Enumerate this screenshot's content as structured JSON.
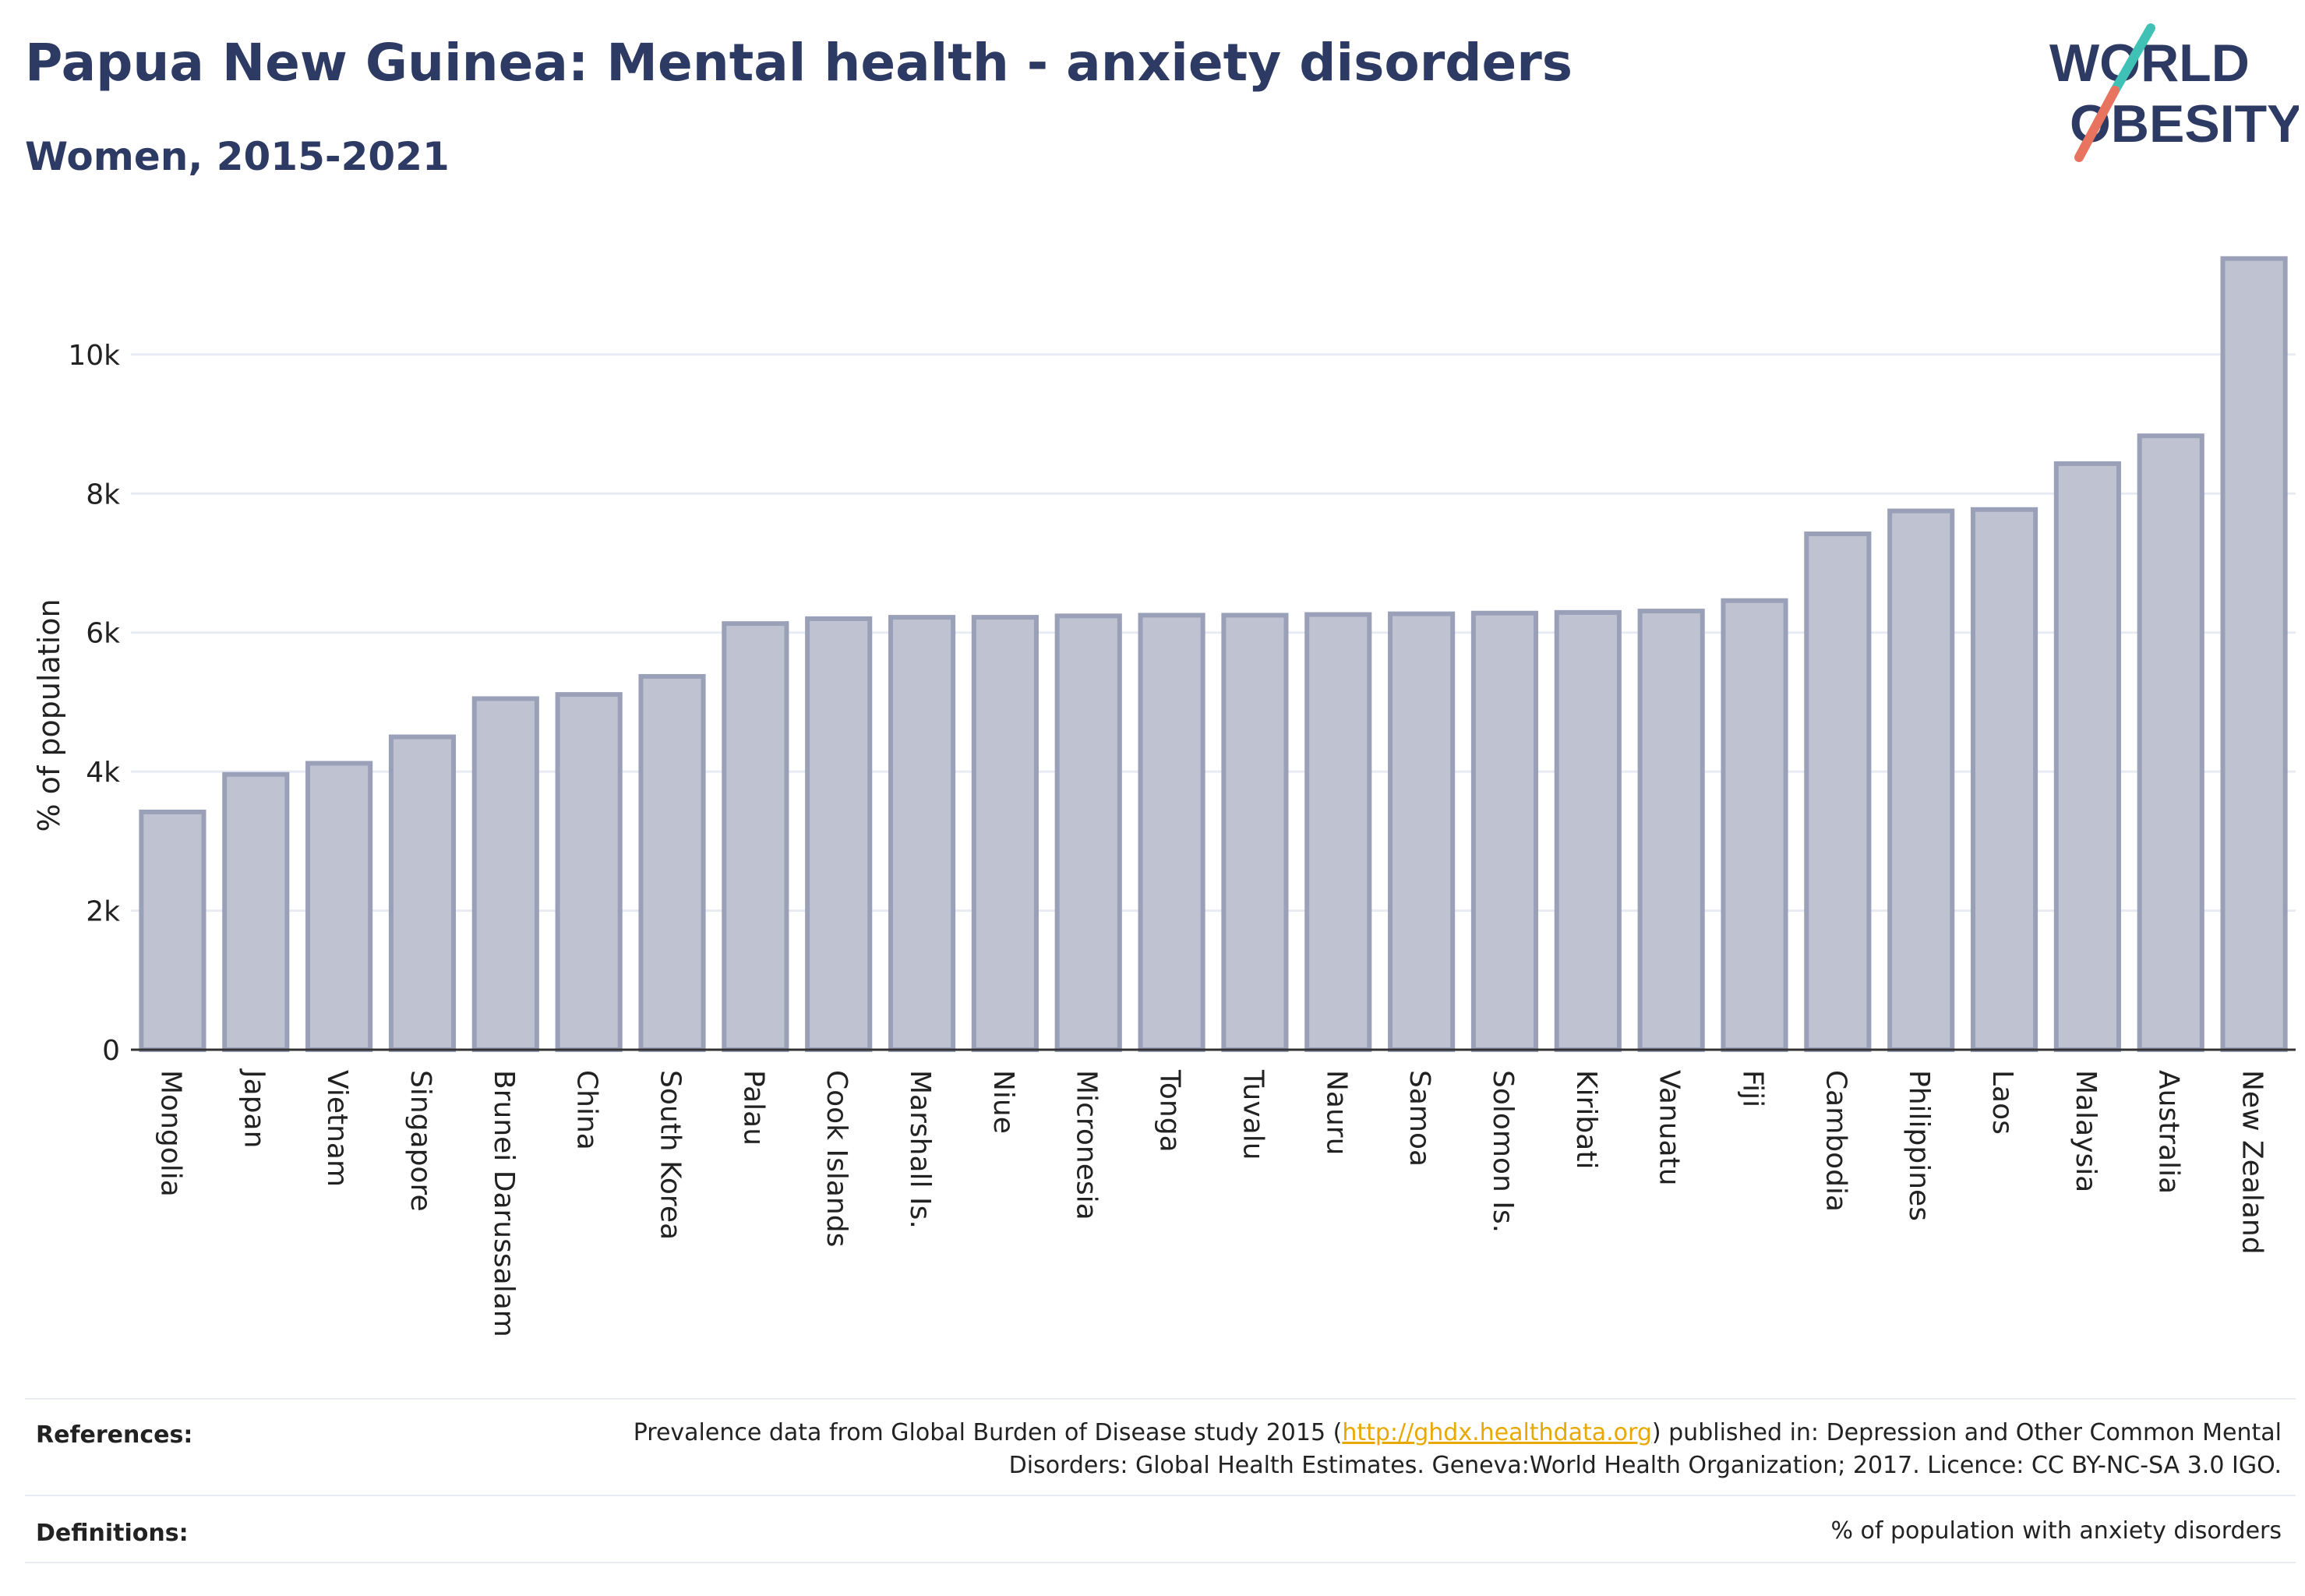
{
  "header": {
    "title": "Papua New Guinea: Mental health - anxiety disorders",
    "subtitle": "Women, 2015-2021"
  },
  "logo": {
    "line1": "WORLD",
    "line2": "OBESITY",
    "text_color": "#2d3a63",
    "slash_colors": [
      "#3fc1b5",
      "#e8735f"
    ]
  },
  "colors": {
    "bar_fill": "#bfc3d1",
    "bar_stroke": "#9aa0b8",
    "grid": "#e8ebf2",
    "axis": "#333333"
  },
  "chart_data": {
    "type": "bar",
    "title": "",
    "xlabel": "",
    "ylabel": "% of population",
    "ylim": [
      0,
      11400
    ],
    "yticks": [
      0,
      2000,
      4000,
      6000,
      8000,
      10000
    ],
    "ytick_labels": [
      "0",
      "2k",
      "4k",
      "6k",
      "8k",
      "10k"
    ],
    "grid": true,
    "categories": [
      "Mongolia",
      "Japan",
      "Vietnam",
      "Singapore",
      "Brunei Darussalam",
      "China",
      "South Korea",
      "Palau",
      "Cook Islands",
      "Marshall Is.",
      "Niue",
      "Micronesia",
      "Tonga",
      "Tuvalu",
      "Nauru",
      "Samoa",
      "Solomon Is.",
      "Kiribati",
      "Vanuatu",
      "Fiji",
      "Cambodia",
      "Philippines",
      "Laos",
      "Malaysia",
      "Australia",
      "New Zealand"
    ],
    "values": [
      3420,
      3960,
      4120,
      4500,
      5050,
      5110,
      5370,
      6130,
      6200,
      6220,
      6220,
      6240,
      6250,
      6250,
      6260,
      6270,
      6280,
      6290,
      6310,
      6460,
      7420,
      7750,
      7770,
      8430,
      8830,
      11380
    ]
  },
  "footer": {
    "references_label": "References:",
    "references_text_before": "Prevalence data from Global Burden of Disease study 2015 (",
    "references_link": "http://ghdx.healthdata.org",
    "references_text_after": ") published in: Depression and Other Common Mental Disorders: Global Health Estimates. Geneva:World Health Organization; 2017. Licence: CC BY-NC-SA 3.0 IGO.",
    "definitions_label": "Definitions:",
    "definitions_text": "% of population with anxiety disorders"
  }
}
